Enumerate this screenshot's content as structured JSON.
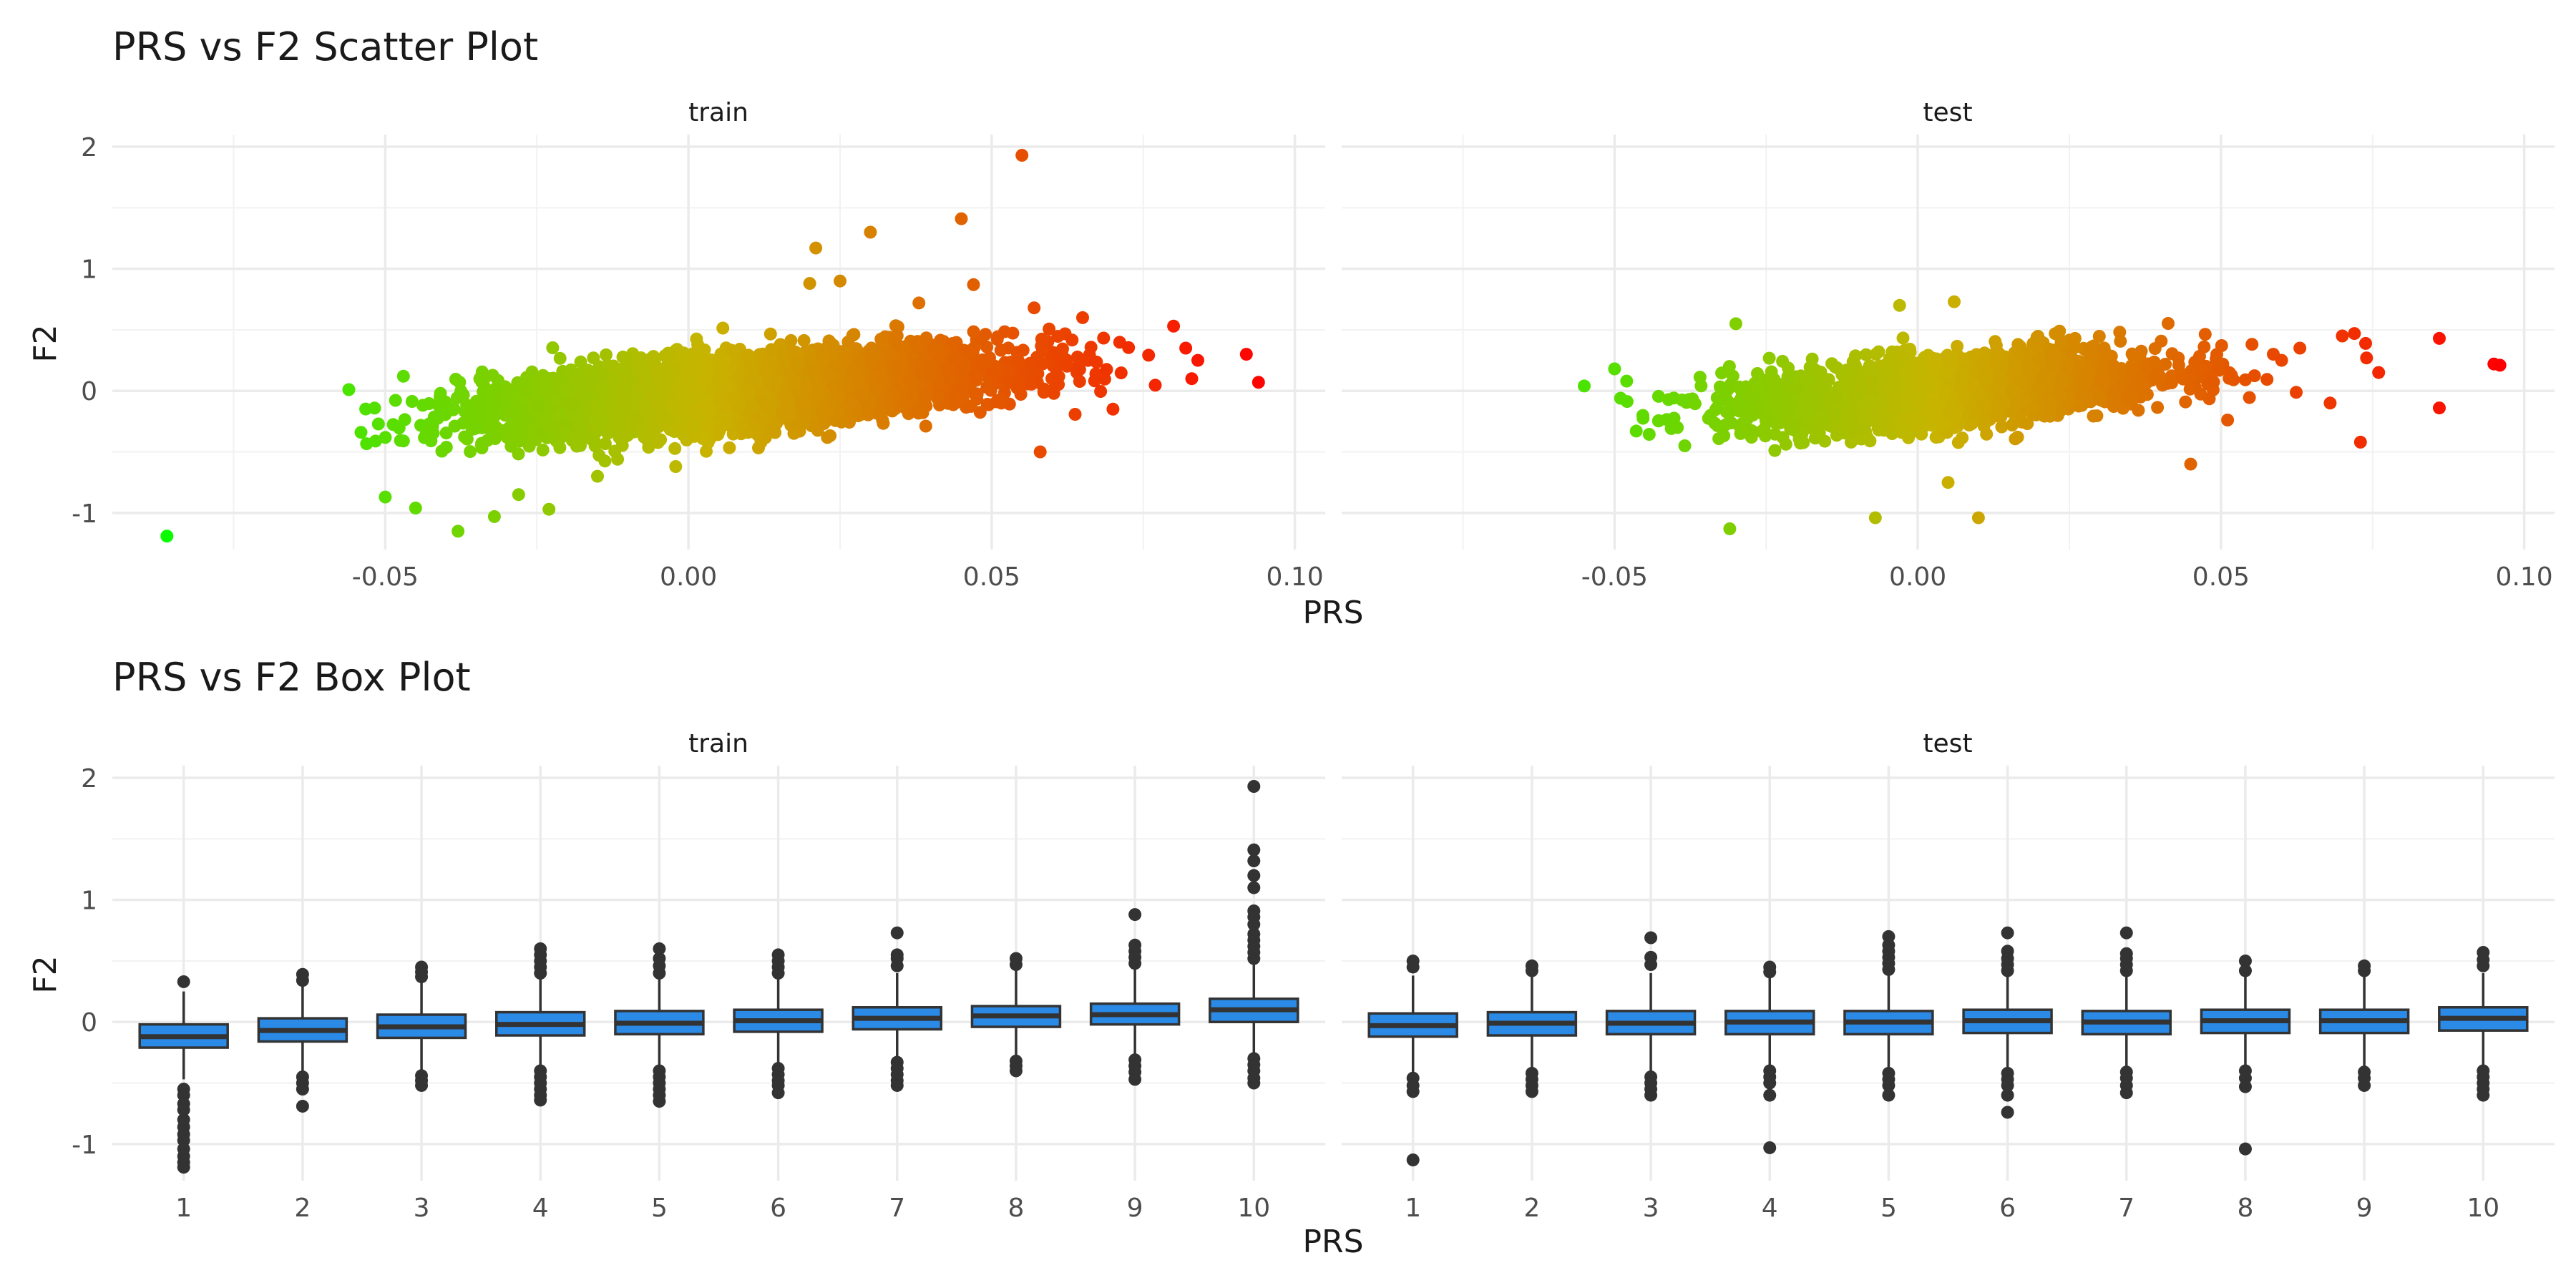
{
  "chart_data": [
    {
      "type": "scatter",
      "title": "PRS vs F2 Scatter Plot",
      "xlabel": "PRS",
      "ylabel": "F2",
      "facets": [
        "train",
        "test"
      ],
      "xlim": [
        -0.095,
        0.105
      ],
      "ylim": [
        -1.3,
        2.1
      ],
      "x_ticks": [
        -0.05,
        0.0,
        0.05,
        0.1
      ],
      "x_tick_labels": [
        "-0.05",
        "0.00",
        "0.05",
        "0.10"
      ],
      "y_ticks": [
        -1,
        0,
        1,
        2
      ],
      "y_tick_labels": [
        "-1",
        "0",
        "1",
        "2"
      ],
      "grid": true,
      "color_scale": {
        "low": "#00ff00",
        "mid": "#c8b400",
        "high": "#ff0000",
        "domain": [
          -0.09,
          0.096
        ]
      },
      "cloud": {
        "train": {
          "n": 4200,
          "x_mean": 0.01,
          "x_sd": 0.021,
          "x_range": [
            -0.057,
            0.083
          ],
          "slope": 4.3,
          "y_sd": 0.14
        },
        "test": {
          "n": 2200,
          "x_mean": 0.005,
          "x_sd": 0.018,
          "x_range": [
            -0.05,
            0.076
          ],
          "slope": 4.0,
          "y_sd": 0.14
        }
      },
      "points": {
        "train": [
          [
            -0.086,
            -1.19
          ],
          [
            -0.05,
            -0.87
          ],
          [
            -0.045,
            -0.96
          ],
          [
            -0.038,
            -1.15
          ],
          [
            -0.028,
            -0.85
          ],
          [
            -0.023,
            -0.97
          ],
          [
            -0.032,
            -1.03
          ],
          [
            -0.015,
            -0.7
          ],
          [
            0.021,
            1.17
          ],
          [
            0.03,
            1.3
          ],
          [
            0.045,
            1.41
          ],
          [
            0.055,
            1.93
          ],
          [
            0.02,
            0.88
          ],
          [
            0.025,
            0.9
          ],
          [
            0.047,
            0.87
          ],
          [
            0.038,
            0.72
          ],
          [
            0.057,
            0.68
          ],
          [
            0.058,
            -0.5
          ],
          [
            0.08,
            0.53
          ],
          [
            0.082,
            0.35
          ],
          [
            0.084,
            0.25
          ],
          [
            0.092,
            0.3
          ],
          [
            0.094,
            0.07
          ],
          [
            0.083,
            0.1
          ],
          [
            -0.056,
            0.01
          ],
          [
            -0.054,
            -0.34
          ],
          [
            -0.047,
            0.12
          ],
          [
            -0.047,
            -0.41
          ],
          [
            0.065,
            0.6
          ],
          [
            0.07,
            -0.15
          ]
        ],
        "test": [
          [
            -0.055,
            0.04
          ],
          [
            -0.05,
            0.18
          ],
          [
            -0.048,
            0.08
          ],
          [
            -0.049,
            -0.06
          ],
          [
            -0.031,
            -1.13
          ],
          [
            0.01,
            -1.04
          ],
          [
            -0.007,
            -1.04
          ],
          [
            0.005,
            -0.75
          ],
          [
            -0.003,
            0.7
          ],
          [
            0.006,
            0.73
          ],
          [
            0.045,
            -0.6
          ],
          [
            0.07,
            0.45
          ],
          [
            0.072,
            0.47
          ],
          [
            0.074,
            0.27
          ],
          [
            0.073,
            -0.42
          ],
          [
            0.076,
            0.15
          ],
          [
            0.086,
            0.43
          ],
          [
            0.086,
            -0.14
          ],
          [
            0.095,
            0.22
          ],
          [
            0.096,
            0.21
          ],
          [
            0.068,
            -0.1
          ],
          [
            0.063,
            0.35
          ],
          [
            0.06,
            0.25
          ],
          [
            -0.03,
            0.55
          ]
        ]
      }
    },
    {
      "type": "box",
      "title": "PRS vs F2 Box Plot",
      "xlabel": "PRS",
      "ylabel": "F2",
      "facets": [
        "train",
        "test"
      ],
      "categories": [
        "1",
        "2",
        "3",
        "4",
        "5",
        "6",
        "7",
        "8",
        "9",
        "10"
      ],
      "ylim": [
        -1.3,
        2.1
      ],
      "y_ticks": [
        -1,
        0,
        1,
        2
      ],
      "y_tick_labels": [
        "-1",
        "0",
        "1",
        "2"
      ],
      "grid": true,
      "fill": "#2a8ae6",
      "outline": "#333333",
      "boxes": {
        "train": [
          {
            "q1": -0.21,
            "median": -0.12,
            "q3": -0.02,
            "lo": -0.47,
            "hi": 0.25,
            "out": [
              0.33,
              -0.55,
              -0.6,
              -0.67,
              -0.72,
              -0.8,
              -0.86,
              -0.92,
              -0.97,
              -1.04,
              -1.1,
              -1.15,
              -1.19
            ]
          },
          {
            "q1": -0.16,
            "median": -0.07,
            "q3": 0.03,
            "lo": -0.43,
            "hi": 0.31,
            "out": [
              0.34,
              0.39,
              -0.45,
              -0.5,
              -0.55,
              -0.69
            ]
          },
          {
            "q1": -0.13,
            "median": -0.04,
            "q3": 0.06,
            "lo": -0.42,
            "hi": 0.33,
            "out": [
              0.37,
              0.41,
              0.45,
              -0.44,
              -0.48,
              -0.52
            ]
          },
          {
            "q1": -0.11,
            "median": -0.02,
            "q3": 0.08,
            "lo": -0.38,
            "hi": 0.35,
            "out": [
              0.4,
              0.45,
              0.5,
              0.55,
              0.6,
              -0.4,
              -0.45,
              -0.5,
              -0.55,
              -0.6,
              -0.64
            ]
          },
          {
            "q1": -0.1,
            "median": -0.01,
            "q3": 0.09,
            "lo": -0.37,
            "hi": 0.36,
            "out": [
              0.4,
              0.46,
              0.52,
              0.6,
              -0.4,
              -0.45,
              -0.5,
              -0.55,
              -0.6,
              -0.65
            ]
          },
          {
            "q1": -0.08,
            "median": 0.01,
            "q3": 0.1,
            "lo": -0.34,
            "hi": 0.37,
            "out": [
              0.4,
              0.45,
              0.5,
              0.55,
              -0.38,
              -0.43,
              -0.48,
              -0.52,
              -0.58
            ]
          },
          {
            "q1": -0.06,
            "median": 0.03,
            "q3": 0.12,
            "lo": -0.31,
            "hi": 0.4,
            "out": [
              0.46,
              0.52,
              0.55,
              0.73,
              -0.33,
              -0.38,
              -0.43,
              -0.48,
              -0.52
            ]
          },
          {
            "q1": -0.04,
            "median": 0.05,
            "q3": 0.13,
            "lo": -0.3,
            "hi": 0.42,
            "out": [
              0.47,
              0.52,
              -0.32,
              -0.36,
              -0.4
            ]
          },
          {
            "q1": -0.02,
            "median": 0.06,
            "q3": 0.15,
            "lo": -0.28,
            "hi": 0.45,
            "out": [
              0.48,
              0.53,
              0.58,
              0.63,
              0.88,
              -0.31,
              -0.36,
              -0.41,
              -0.47
            ]
          },
          {
            "q1": 0.0,
            "median": 0.1,
            "q3": 0.19,
            "lo": -0.26,
            "hi": 0.47,
            "out": [
              0.52,
              0.57,
              0.62,
              0.67,
              0.72,
              0.8,
              0.86,
              0.91,
              1.1,
              1.2,
              1.32,
              1.41,
              1.93,
              -0.3,
              -0.35,
              -0.4,
              -0.46,
              -0.5
            ]
          }
        ],
        "test": [
          {
            "q1": -0.12,
            "median": -0.03,
            "q3": 0.07,
            "lo": -0.41,
            "hi": 0.38,
            "out": [
              0.45,
              0.5,
              -0.46,
              -0.52,
              -0.57,
              -1.13
            ]
          },
          {
            "q1": -0.11,
            "median": -0.01,
            "q3": 0.08,
            "lo": -0.4,
            "hi": 0.38,
            "out": [
              0.42,
              0.46,
              -0.42,
              -0.47,
              -0.52,
              -0.57
            ]
          },
          {
            "q1": -0.1,
            "median": -0.01,
            "q3": 0.09,
            "lo": -0.41,
            "hi": 0.4,
            "out": [
              0.47,
              0.53,
              0.69,
              -0.45,
              -0.5,
              -0.55,
              -0.6
            ]
          },
          {
            "q1": -0.1,
            "median": 0.0,
            "q3": 0.09,
            "lo": -0.38,
            "hi": 0.38,
            "out": [
              0.41,
              0.45,
              -0.4,
              -0.45,
              -0.5,
              -0.6,
              -1.03
            ]
          },
          {
            "q1": -0.1,
            "median": 0.0,
            "q3": 0.09,
            "lo": -0.39,
            "hi": 0.38,
            "out": [
              0.43,
              0.48,
              0.53,
              0.58,
              0.63,
              0.7,
              -0.42,
              -0.47,
              -0.52,
              -0.6
            ]
          },
          {
            "q1": -0.09,
            "median": 0.01,
            "q3": 0.1,
            "lo": -0.39,
            "hi": 0.38,
            "out": [
              0.42,
              0.47,
              0.52,
              0.58,
              0.73,
              -0.42,
              -0.47,
              -0.52,
              -0.6,
              -0.74
            ]
          },
          {
            "q1": -0.1,
            "median": 0.0,
            "q3": 0.09,
            "lo": -0.38,
            "hi": 0.38,
            "out": [
              0.42,
              0.47,
              0.52,
              0.56,
              0.73,
              -0.41,
              -0.46,
              -0.52,
              -0.58
            ]
          },
          {
            "q1": -0.09,
            "median": 0.01,
            "q3": 0.1,
            "lo": -0.37,
            "hi": 0.37,
            "out": [
              0.42,
              0.5,
              -0.4,
              -0.46,
              -0.53,
              -1.04
            ]
          },
          {
            "q1": -0.09,
            "median": 0.01,
            "q3": 0.1,
            "lo": -0.38,
            "hi": 0.38,
            "out": [
              0.42,
              0.46,
              -0.41,
              -0.46,
              -0.52
            ]
          },
          {
            "q1": -0.07,
            "median": 0.03,
            "q3": 0.12,
            "lo": -0.36,
            "hi": 0.4,
            "out": [
              0.46,
              0.51,
              0.57,
              -0.4,
              -0.45,
              -0.5,
              -0.55,
              -0.6
            ]
          }
        ]
      }
    }
  ]
}
